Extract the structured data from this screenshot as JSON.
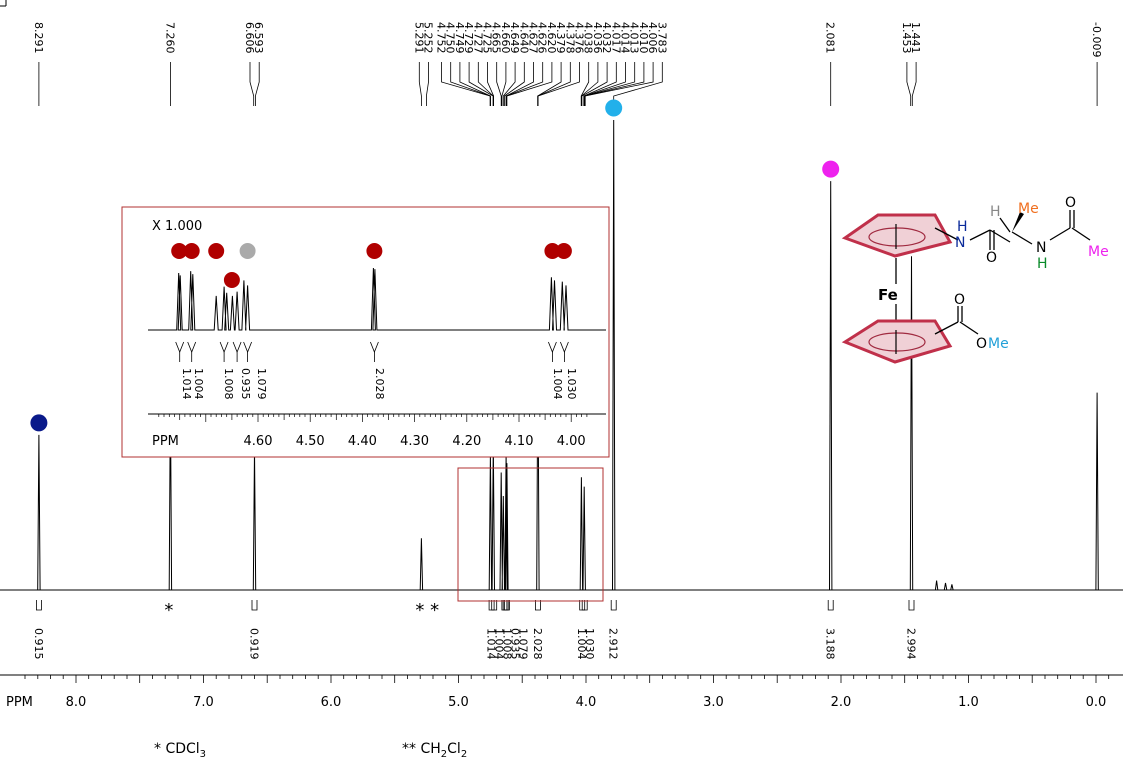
{
  "chart_data": {
    "type": "line",
    "title": "",
    "xlabel": "PPM",
    "xlim": [
      8.4,
      -0.1
    ],
    "x_reversed": true,
    "x_ticks": [
      "8.0",
      "7.0",
      "6.0",
      "5.0",
      "4.0",
      "3.0",
      "2.0",
      "1.0",
      "0.0"
    ],
    "peak_labels": [
      "8.291",
      "7.260",
      "6.606",
      "6.593",
      "5.291",
      "5.252",
      "4.752",
      "4.750",
      "4.749",
      "4.729",
      "4.727",
      "4.725",
      "4.665",
      "4.660",
      "4.649",
      "4.640",
      "4.627",
      "4.626",
      "4.620",
      "4.379",
      "4.378",
      "4.376",
      "4.038",
      "4.036",
      "4.032",
      "4.017",
      "4.014",
      "4.013",
      "4.010",
      "4.006",
      "3.783",
      "2.081",
      "1.453",
      "1.441",
      "-0.009"
    ],
    "peaks": [
      {
        "ppm": 8.291,
        "height": 0.33
      },
      {
        "ppm": 7.26,
        "height": 0.42
      },
      {
        "ppm": 6.6,
        "height": 0.3
      },
      {
        "ppm": 5.291,
        "height": 0.11
      },
      {
        "ppm": 4.75,
        "height": 0.29
      },
      {
        "ppm": 4.727,
        "height": 0.31
      },
      {
        "ppm": 4.665,
        "height": 0.25
      },
      {
        "ppm": 4.649,
        "height": 0.2
      },
      {
        "ppm": 4.627,
        "height": 0.29
      },
      {
        "ppm": 4.62,
        "height": 0.27
      },
      {
        "ppm": 4.377,
        "height": 0.52
      },
      {
        "ppm": 4.036,
        "height": 0.24
      },
      {
        "ppm": 4.014,
        "height": 0.22
      },
      {
        "ppm": 3.783,
        "height": 1.0
      },
      {
        "ppm": 2.081,
        "height": 0.87
      },
      {
        "ppm": 1.447,
        "height": 0.71
      },
      {
        "ppm": 1.25,
        "height": 0.02
      },
      {
        "ppm": 1.18,
        "height": 0.015
      },
      {
        "ppm": 1.13,
        "height": 0.012
      },
      {
        "ppm": -0.009,
        "height": 0.42
      }
    ],
    "integrals": [
      {
        "ppm": 8.291,
        "value": "0.915"
      },
      {
        "ppm": 6.6,
        "value": "0.919"
      },
      {
        "ppm": 4.74,
        "value": "1.014"
      },
      {
        "ppm": 4.72,
        "value": "1.004"
      },
      {
        "ppm": 4.64,
        "value": "1.008"
      },
      {
        "ppm": 4.63,
        "value": "0.935"
      },
      {
        "ppm": 4.62,
        "value": "1.079"
      },
      {
        "ppm": 4.377,
        "value": "2.028"
      },
      {
        "ppm": 4.03,
        "value": "1.004"
      },
      {
        "ppm": 4.01,
        "value": "1.030"
      },
      {
        "ppm": 3.783,
        "value": "2.912"
      },
      {
        "ppm": 2.081,
        "value": "3.188"
      },
      {
        "ppm": 1.447,
        "value": "2.994"
      }
    ],
    "markers": [
      {
        "ppm": 8.291,
        "color": "#0a1a8a"
      },
      {
        "ppm": 6.6,
        "color": "#0a8a2a"
      },
      {
        "ppm": 3.783,
        "color": "#22b0ea"
      },
      {
        "ppm": 2.081,
        "color": "#ee22ee"
      },
      {
        "ppm": 1.447,
        "color": "#f07020"
      }
    ],
    "solvent_marks": [
      {
        "ppm": 7.26,
        "text": "*"
      },
      {
        "ppm": 5.291,
        "text": "* *"
      }
    ],
    "inset": {
      "scale_label": "X 1.000",
      "xlabel": "PPM",
      "xlim": [
        4.79,
        3.97
      ],
      "x_ticks": [
        "4.60",
        "4.50",
        "4.40",
        "4.30",
        "4.20",
        "4.10",
        "4.00"
      ],
      "integral_labels": [
        "1.014",
        "1.004",
        "1.008",
        "0.935",
        "1.079",
        "2.028",
        "1.004",
        "1.030"
      ],
      "markers": [
        {
          "ppm": 4.751,
          "color": "#b00000"
        },
        {
          "ppm": 4.727,
          "color": "#b00000"
        },
        {
          "ppm": 4.68,
          "color": "#b00000"
        },
        {
          "ppm": 4.65,
          "color": "#b00000"
        },
        {
          "ppm": 4.62,
          "color": "#aaaaaa"
        },
        {
          "ppm": 4.377,
          "color": "#b00000"
        },
        {
          "ppm": 4.036,
          "color": "#b00000"
        },
        {
          "ppm": 4.014,
          "color": "#b00000"
        }
      ]
    }
  },
  "structure": {
    "labels": {
      "h_amide1": "H",
      "n_amide1": "N",
      "o_amide1": "O",
      "h_alpha": "H",
      "me_alpha": "Me",
      "n_amide2": "N",
      "h_amide2": "H",
      "o_acetyl": "O",
      "me_acetyl": "Me",
      "fe": "Fe",
      "o_ester1": "O",
      "o_ester2": "O",
      "me_ester": "Me"
    }
  },
  "footnotes": {
    "note1_prefix": "* CDCl",
    "note1_sub": "3",
    "note2_prefix": "** CH",
    "note2_sub1": "2",
    "note2_mid": "Cl",
    "note2_sub2": "2"
  },
  "colors": {
    "frame": "#b03030",
    "spectrum": "#000000",
    "ring_stroke": "#c0304a",
    "ring_fill": "#f0d0d6"
  }
}
